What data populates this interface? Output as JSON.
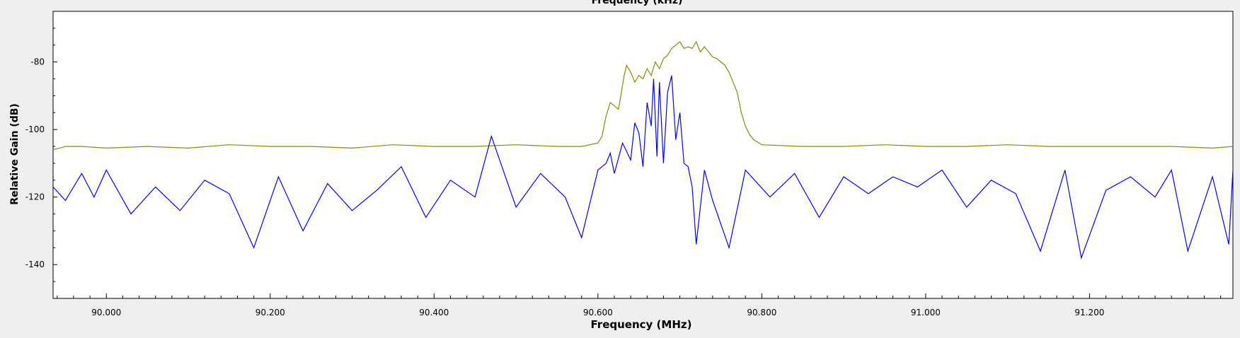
{
  "chart_data": {
    "type": "line",
    "top_label": "Frequency (kHz)",
    "xlabel": "Frequency (MHz)",
    "ylabel": "Relative Gain (dB)",
    "xlim": [
      89.935,
      91.375
    ],
    "ylim": [
      -150,
      -65
    ],
    "x_ticks": [
      {
        "value": 90.0,
        "label": "90.000"
      },
      {
        "value": 90.2,
        "label": "90.200"
      },
      {
        "value": 90.4,
        "label": "90.400"
      },
      {
        "value": 90.6,
        "label": "90.600"
      },
      {
        "value": 90.8,
        "label": "90.800"
      },
      {
        "value": 91.0,
        "label": "91.000"
      },
      {
        "value": 91.2,
        "label": "91.200"
      }
    ],
    "y_ticks": [
      {
        "value": -80,
        "label": "-80"
      },
      {
        "value": -100,
        "label": "-100"
      },
      {
        "value": -120,
        "label": "-120"
      },
      {
        "value": -140,
        "label": "-140"
      }
    ],
    "grid": false,
    "series": [
      {
        "color": "#8b8b00",
        "points": [
          [
            89.935,
            -106
          ],
          [
            89.95,
            -105
          ],
          [
            89.97,
            -105
          ],
          [
            90.0,
            -105.5
          ],
          [
            90.05,
            -105
          ],
          [
            90.1,
            -105.5
          ],
          [
            90.15,
            -104.5
          ],
          [
            90.2,
            -105
          ],
          [
            90.25,
            -105
          ],
          [
            90.3,
            -105.5
          ],
          [
            90.35,
            -104.5
          ],
          [
            90.4,
            -105
          ],
          [
            90.45,
            -105
          ],
          [
            90.5,
            -104.5
          ],
          [
            90.55,
            -105
          ],
          [
            90.58,
            -105
          ],
          [
            90.6,
            -104
          ],
          [
            90.605,
            -102
          ],
          [
            90.61,
            -96
          ],
          [
            90.615,
            -92
          ],
          [
            90.62,
            -93
          ],
          [
            90.625,
            -94
          ],
          [
            90.628,
            -90
          ],
          [
            90.632,
            -84
          ],
          [
            90.635,
            -81
          ],
          [
            90.64,
            -83
          ],
          [
            90.645,
            -86
          ],
          [
            90.65,
            -84
          ],
          [
            90.655,
            -85
          ],
          [
            90.66,
            -82
          ],
          [
            90.665,
            -84
          ],
          [
            90.67,
            -80
          ],
          [
            90.675,
            -82
          ],
          [
            90.68,
            -79
          ],
          [
            90.685,
            -78
          ],
          [
            90.69,
            -76
          ],
          [
            90.695,
            -75
          ],
          [
            90.7,
            -74
          ],
          [
            90.705,
            -76
          ],
          [
            90.71,
            -75.5
          ],
          [
            90.715,
            -76
          ],
          [
            90.72,
            -74
          ],
          [
            90.725,
            -77
          ],
          [
            90.73,
            -75.5
          ],
          [
            90.735,
            -77
          ],
          [
            90.74,
            -78.5
          ],
          [
            90.745,
            -79
          ],
          [
            90.75,
            -80
          ],
          [
            90.755,
            -81
          ],
          [
            90.76,
            -83
          ],
          [
            90.765,
            -86
          ],
          [
            90.77,
            -89
          ],
          [
            90.775,
            -95
          ],
          [
            90.78,
            -99
          ],
          [
            90.785,
            -101.5
          ],
          [
            90.79,
            -103
          ],
          [
            90.8,
            -104.5
          ],
          [
            90.85,
            -105
          ],
          [
            90.9,
            -105
          ],
          [
            90.95,
            -104.5
          ],
          [
            91.0,
            -105
          ],
          [
            91.05,
            -105
          ],
          [
            91.1,
            -104.5
          ],
          [
            91.15,
            -105
          ],
          [
            91.2,
            -105
          ],
          [
            91.25,
            -105
          ],
          [
            91.3,
            -105
          ],
          [
            91.35,
            -105.5
          ],
          [
            91.375,
            -105
          ]
        ]
      },
      {
        "color": "#0000ff",
        "points": [
          [
            89.935,
            -117
          ],
          [
            89.95,
            -121
          ],
          [
            89.97,
            -113
          ],
          [
            89.985,
            -120
          ],
          [
            90.0,
            -112
          ],
          [
            90.03,
            -125
          ],
          [
            90.06,
            -117
          ],
          [
            90.09,
            -124
          ],
          [
            90.12,
            -115
          ],
          [
            90.15,
            -119
          ],
          [
            90.18,
            -135
          ],
          [
            90.21,
            -114
          ],
          [
            90.24,
            -130
          ],
          [
            90.27,
            -116
          ],
          [
            90.3,
            -124
          ],
          [
            90.33,
            -118
          ],
          [
            90.36,
            -111
          ],
          [
            90.39,
            -126
          ],
          [
            90.42,
            -115
          ],
          [
            90.45,
            -120
          ],
          [
            90.47,
            -102
          ],
          [
            90.5,
            -123
          ],
          [
            90.53,
            -113
          ],
          [
            90.56,
            -120
          ],
          [
            90.58,
            -132
          ],
          [
            90.6,
            -112
          ],
          [
            90.61,
            -110
          ],
          [
            90.615,
            -107
          ],
          [
            90.62,
            -113
          ],
          [
            90.63,
            -104
          ],
          [
            90.64,
            -109
          ],
          [
            90.645,
            -98
          ],
          [
            90.65,
            -101
          ],
          [
            90.655,
            -111
          ],
          [
            90.66,
            -92
          ],
          [
            90.665,
            -99
          ],
          [
            90.668,
            -85
          ],
          [
            90.672,
            -108
          ],
          [
            90.675,
            -86
          ],
          [
            90.68,
            -110
          ],
          [
            90.685,
            -89
          ],
          [
            90.69,
            -84
          ],
          [
            90.695,
            -103
          ],
          [
            90.7,
            -95
          ],
          [
            90.705,
            -110
          ],
          [
            90.71,
            -111
          ],
          [
            90.715,
            -117
          ],
          [
            90.72,
            -134
          ],
          [
            90.73,
            -112
          ],
          [
            90.74,
            -121
          ],
          [
            90.76,
            -135
          ],
          [
            90.78,
            -112
          ],
          [
            90.81,
            -120
          ],
          [
            90.84,
            -113
          ],
          [
            90.87,
            -126
          ],
          [
            90.9,
            -114
          ],
          [
            90.93,
            -119
          ],
          [
            90.96,
            -114
          ],
          [
            90.99,
            -117
          ],
          [
            91.02,
            -112
          ],
          [
            91.05,
            -123
          ],
          [
            91.08,
            -115
          ],
          [
            91.11,
            -119
          ],
          [
            91.14,
            -136
          ],
          [
            91.17,
            -112
          ],
          [
            91.19,
            -138
          ],
          [
            91.22,
            -118
          ],
          [
            91.25,
            -114
          ],
          [
            91.28,
            -120
          ],
          [
            91.3,
            -112
          ],
          [
            91.32,
            -136
          ],
          [
            91.35,
            -114
          ],
          [
            91.37,
            -134
          ],
          [
            91.375,
            -112
          ]
        ]
      }
    ]
  }
}
